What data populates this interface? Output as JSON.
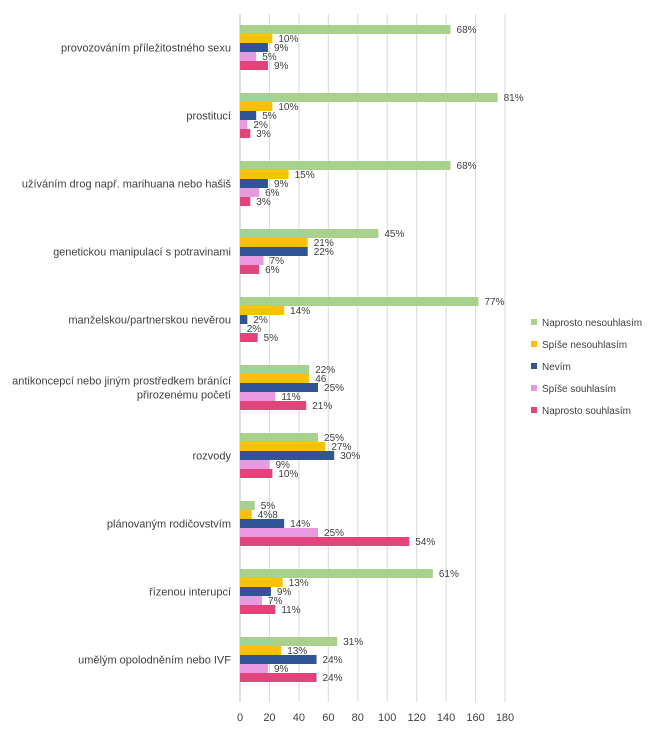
{
  "chart_data": {
    "type": "bar",
    "orientation": "horizontal",
    "xlim": [
      0,
      180
    ],
    "x_ticks": [
      "0",
      "20",
      "40",
      "60",
      "80",
      "100",
      "120",
      "140",
      "160",
      "180"
    ],
    "grid": "vertical",
    "legend_position": "right",
    "categories": [
      [
        "provozováním příležitostného sexu"
      ],
      [
        "prostitucí"
      ],
      [
        "užíváním drog např. marihuana nebo hašiš"
      ],
      [
        "genetickou manipulací s potravinami"
      ],
      [
        "manželskou/partnerskou nevěrou"
      ],
      [
        "antikoncepcí nebo jiným prostředkem bránící",
        "přirozenému početí"
      ],
      [
        "rozvody"
      ],
      [
        "plánovaným rodičovstvím"
      ],
      [
        "řízenou interupcí"
      ],
      [
        "umělým opolodněním nebo IVF"
      ]
    ],
    "series": [
      {
        "name": "Naprosto nesouhlasím",
        "color": "#a9d18e",
        "values": [
          143,
          175,
          143,
          94,
          162,
          47,
          53,
          10,
          131,
          66
        ],
        "labels": [
          "68%",
          "81%",
          "68%",
          "45%",
          "77%",
          "22%",
          "25%",
          "5%",
          "61%",
          "31%"
        ]
      },
      {
        "name": "Spíše nesouhlasím",
        "color": "#ffc000",
        "values": [
          22,
          22,
          33,
          46,
          30,
          47,
          58,
          8,
          29,
          28
        ],
        "labels": [
          "10%",
          "10%",
          "15%",
          "21%",
          "14%",
          "46",
          "27%",
          "4%8",
          "13%",
          "13%"
        ]
      },
      {
        "name": "Nevím",
        "color": "#2f5597",
        "values": [
          19,
          11,
          19,
          46,
          5,
          53,
          64,
          30,
          21,
          52
        ],
        "labels": [
          "9%",
          "5%",
          "9%",
          "22%",
          "2%",
          "25%",
          "30%",
          "14%",
          "9%",
          "24%"
        ]
      },
      {
        "name": "Spíše souhlasím",
        "color": "#e899e0",
        "values": [
          11,
          5,
          13,
          16,
          0.5,
          24,
          20,
          53,
          15,
          19
        ],
        "labels": [
          "5%",
          "2%",
          "6%",
          "7%",
          "2%",
          "11%",
          "9%",
          "25%",
          "7%",
          "9%"
        ]
      },
      {
        "name": "Naprosto souhlasím",
        "color": "#e0447a",
        "values": [
          19,
          7,
          7,
          13,
          12,
          45,
          22,
          115,
          24,
          52
        ],
        "labels": [
          "9%",
          "3%",
          "3%",
          "6%",
          "5%",
          "21%",
          "10%",
          "54%",
          "11%",
          "24%"
        ]
      }
    ]
  }
}
